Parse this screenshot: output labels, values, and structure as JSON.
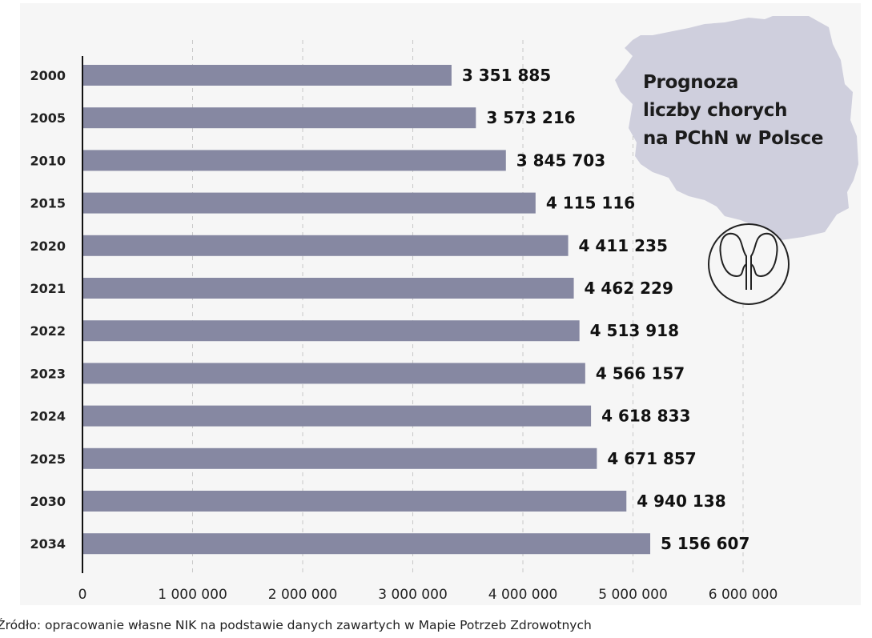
{
  "chart_data": {
    "type": "bar",
    "orientation": "horizontal",
    "title": "Prognoza\nliczby chorych\nna PChN w Polsce",
    "categories": [
      "2000",
      "2005",
      "2010",
      "2015",
      "2020",
      "2021",
      "2022",
      "2023",
      "2024",
      "2025",
      "2030",
      "2034"
    ],
    "values": [
      3351885,
      3573216,
      3845703,
      4115116,
      4411235,
      4462229,
      4513918,
      4566157,
      4618833,
      4671857,
      4940138,
      5156607
    ],
    "data_labels": [
      "3 351 885",
      "3 573 216",
      "3 845 703",
      "4 115 116",
      "4 411 235",
      "4 462 229",
      "4 513 918",
      "4 566 157",
      "4 618 833",
      "4 671 857",
      "4 940 138",
      "5 156 607"
    ],
    "xlim": [
      0,
      6000000
    ],
    "x_ticks": [
      0,
      1000000,
      2000000,
      3000000,
      4000000,
      5000000,
      6000000
    ],
    "x_tick_labels": [
      "0",
      "1 000 000",
      "2 000 000",
      "3 000 000",
      "4 000 000",
      "5 000 000",
      "6 000 000"
    ],
    "grid": "vertical dashed",
    "bar_color": "#8688a2",
    "map_color": "#cfcfdd",
    "icons": [
      "poland-map-shape",
      "kidney-icon"
    ]
  },
  "source": "Źródło: opracowanie własne NIK na podstawie danych zawartych w Mapie Potrzeb Zdrowotnych"
}
